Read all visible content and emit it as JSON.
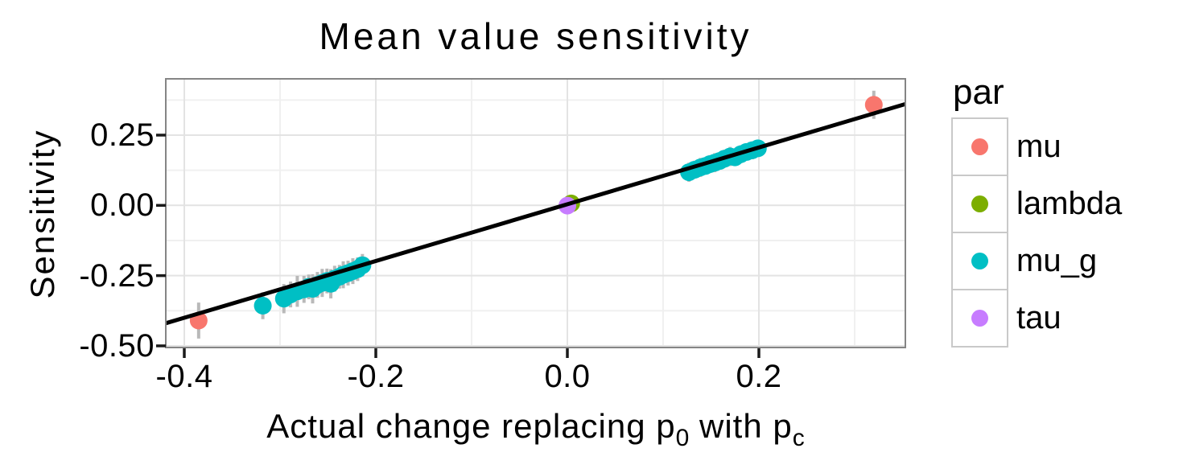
{
  "chart_data": {
    "type": "scatter",
    "title": "Mean value sensitivity",
    "xlabel": "Actual change replacing p0 with pc",
    "xlabel_parts": [
      {
        "text": "Actual change replacing p",
        "sub": false
      },
      {
        "text": "0",
        "sub": true
      },
      {
        "text": " with p",
        "sub": false
      },
      {
        "text": "c",
        "sub": true
      }
    ],
    "ylabel": "Sensitivity",
    "xlim": [
      -0.4193,
      0.3529
    ],
    "ylim": [
      -0.506,
      0.45
    ],
    "x_ticks": {
      "values": [
        -0.4,
        -0.2,
        0.0,
        0.2
      ],
      "labels": [
        "-0.4",
        "-0.2",
        "0.0",
        "0.2"
      ]
    },
    "y_ticks": {
      "values": [
        0.25,
        0.0,
        -0.25,
        -0.5
      ],
      "labels": [
        "0.25",
        "0.00",
        "-0.25",
        "-0.50"
      ]
    },
    "x_minor": [
      -0.3,
      -0.1,
      0.1,
      0.3
    ],
    "y_minor": [
      0.375,
      0.125,
      -0.125,
      -0.375
    ],
    "grid": true,
    "legend": {
      "title": "par",
      "position": "right",
      "items": [
        {
          "label": "mu",
          "color": "#F8766D"
        },
        {
          "label": "lambda",
          "color": "#7CAE00"
        },
        {
          "label": "mu_g",
          "color": "#00BFC4"
        },
        {
          "label": "tau",
          "color": "#C77CFF"
        }
      ]
    },
    "abline": {
      "slope": 1.01,
      "intercept": 0.004,
      "color": "#000000"
    },
    "series": [
      {
        "name": "mu",
        "color": "#F8766D",
        "points": [
          {
            "x": -0.385,
            "y": -0.41,
            "err": 0.064
          },
          {
            "x": 0.32,
            "y": 0.358,
            "err": 0.05
          }
        ]
      },
      {
        "name": "lambda",
        "color": "#7CAE00",
        "points": [
          {
            "x": 0.004,
            "y": 0.007,
            "err": 0.015
          }
        ]
      },
      {
        "name": "mu_g",
        "color": "#00BFC4",
        "points": [
          {
            "x": -0.318,
            "y": -0.357,
            "err": 0.048
          },
          {
            "x": -0.296,
            "y": -0.332,
            "err": 0.052
          },
          {
            "x": -0.289,
            "y": -0.317,
            "err": 0.046
          },
          {
            "x": -0.282,
            "y": -0.306,
            "err": 0.055
          },
          {
            "x": -0.275,
            "y": -0.299,
            "err": 0.048
          },
          {
            "x": -0.27,
            "y": -0.29,
            "err": 0.044
          },
          {
            "x": -0.266,
            "y": -0.297,
            "err": 0.052
          },
          {
            "x": -0.261,
            "y": -0.283,
            "err": 0.046
          },
          {
            "x": -0.256,
            "y": -0.276,
            "err": 0.05
          },
          {
            "x": -0.251,
            "y": -0.269,
            "err": 0.044
          },
          {
            "x": -0.247,
            "y": -0.279,
            "err": 0.052
          },
          {
            "x": -0.243,
            "y": -0.261,
            "err": 0.046
          },
          {
            "x": -0.238,
            "y": -0.254,
            "err": 0.042
          },
          {
            "x": -0.234,
            "y": -0.247,
            "err": 0.048
          },
          {
            "x": -0.229,
            "y": -0.241,
            "err": 0.044
          },
          {
            "x": -0.224,
            "y": -0.234,
            "err": 0.046
          },
          {
            "x": -0.219,
            "y": -0.227,
            "err": 0.042
          },
          {
            "x": -0.214,
            "y": -0.213,
            "err": 0.04
          },
          {
            "x": 0.127,
            "y": 0.118,
            "err": 0.034
          },
          {
            "x": 0.133,
            "y": 0.127,
            "err": 0.032
          },
          {
            "x": 0.139,
            "y": 0.135,
            "err": 0.034
          },
          {
            "x": 0.144,
            "y": 0.14,
            "err": 0.03
          },
          {
            "x": 0.149,
            "y": 0.147,
            "err": 0.032
          },
          {
            "x": 0.154,
            "y": 0.152,
            "err": 0.034
          },
          {
            "x": 0.159,
            "y": 0.158,
            "err": 0.03
          },
          {
            "x": 0.164,
            "y": 0.166,
            "err": 0.032
          },
          {
            "x": 0.17,
            "y": 0.174,
            "err": 0.034
          },
          {
            "x": 0.175,
            "y": 0.171,
            "err": 0.03
          },
          {
            "x": 0.181,
            "y": 0.182,
            "err": 0.032
          },
          {
            "x": 0.187,
            "y": 0.19,
            "err": 0.03
          },
          {
            "x": 0.193,
            "y": 0.196,
            "err": 0.032
          },
          {
            "x": 0.199,
            "y": 0.203,
            "err": 0.03
          }
        ]
      },
      {
        "name": "tau",
        "color": "#C77CFF",
        "points": [
          {
            "x": 0.0,
            "y": -0.001,
            "err": 0.015
          }
        ]
      }
    ],
    "style": {
      "panel_bg": "#FFFFFF",
      "panel_border": "#858585",
      "grid_major": "#E3E3E3",
      "grid_minor": "#F0F0F0",
      "errorbar": "#B9B9B9",
      "tick": "#1A1A1A",
      "point_radius": 11
    }
  }
}
